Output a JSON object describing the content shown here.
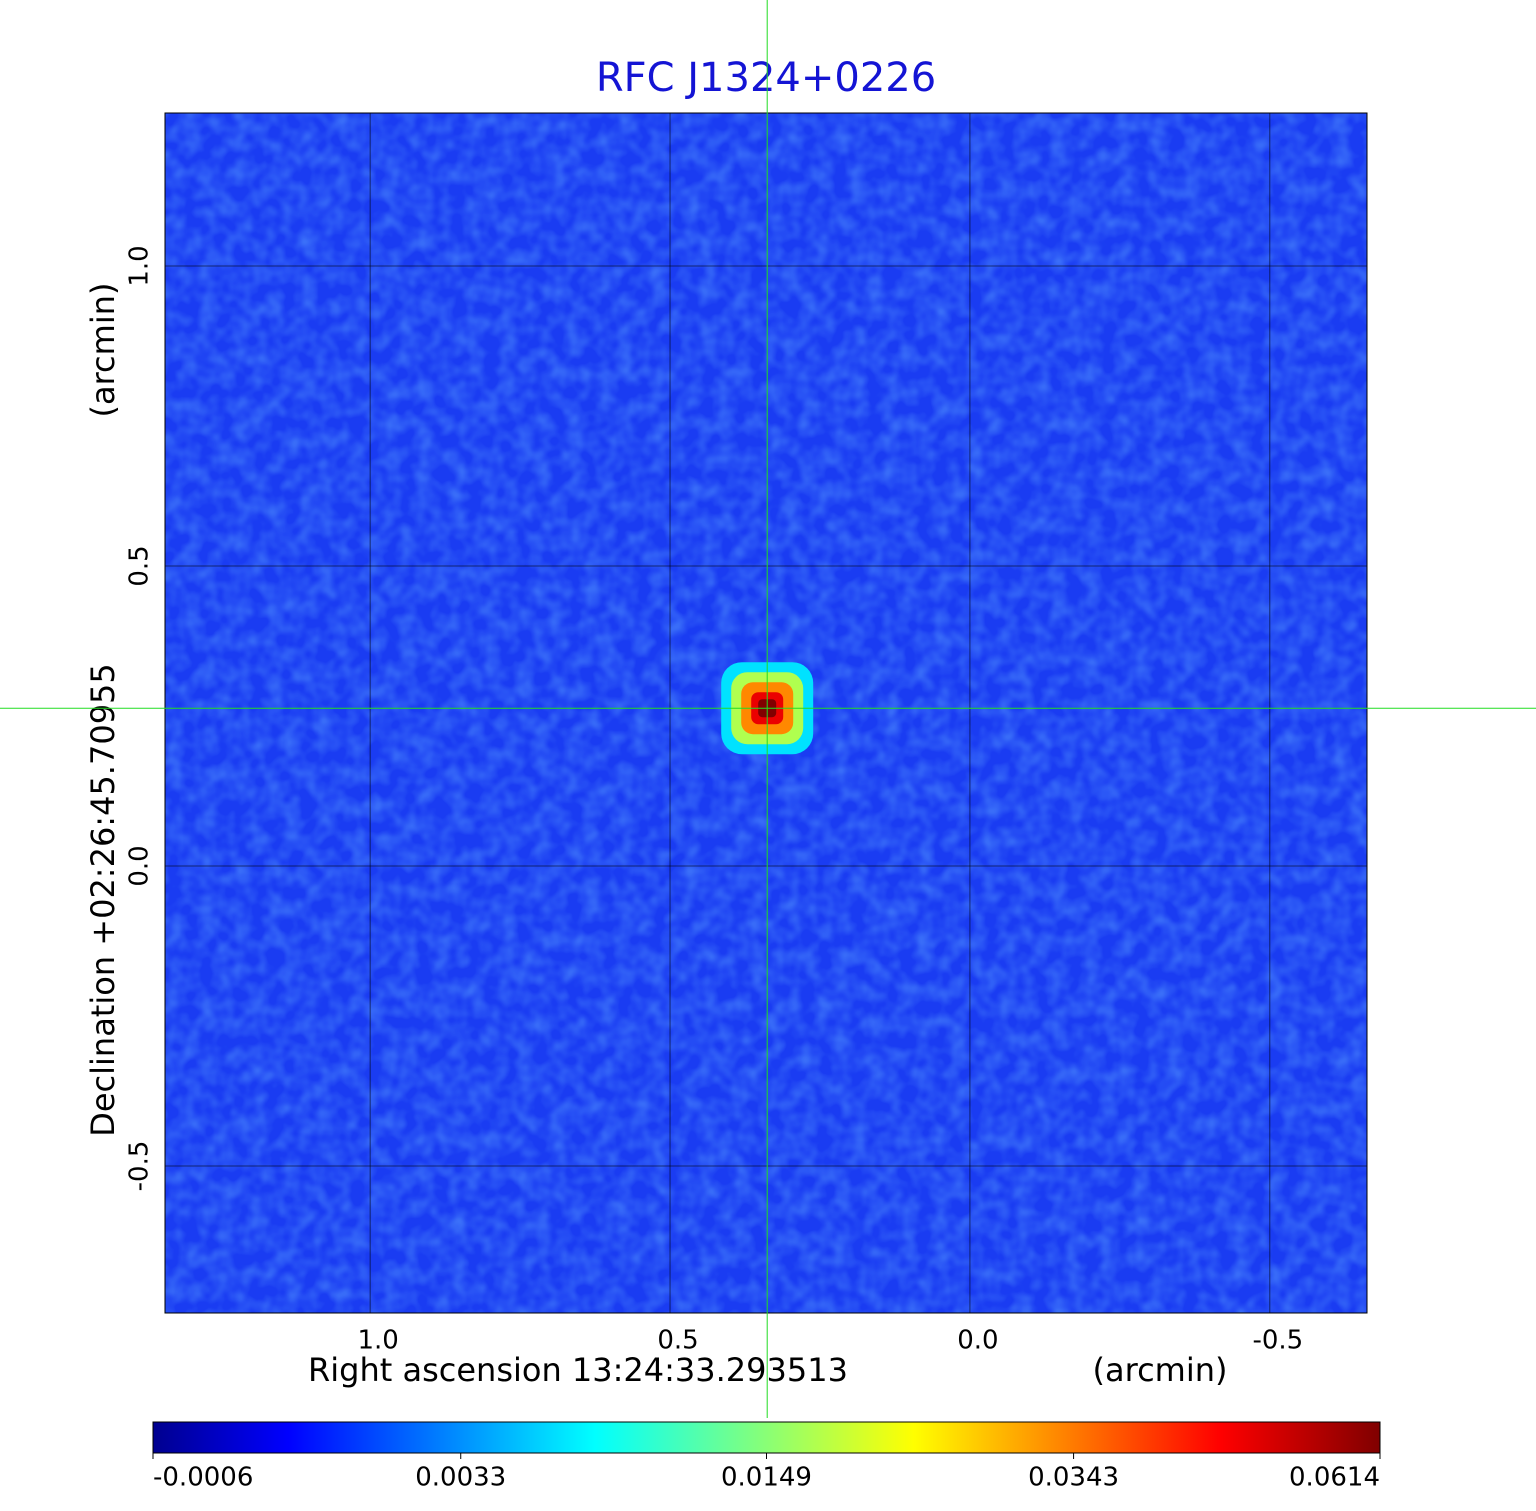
{
  "chart_data": {
    "type": "image",
    "title": "RFC J1324+0226",
    "x_label": "Right ascension  13:24:33.293513",
    "x_unit": "(arcmin)",
    "y_label": "Declination  +02:26:45.70955",
    "y_unit": "(arcmin)",
    "xlim": [
      1.342,
      -0.662
    ],
    "ylim": [
      -0.745,
      1.255
    ],
    "xticks": [
      {
        "value": 1,
        "label": "1.0"
      },
      {
        "value": 0.5,
        "label": "0.5"
      },
      {
        "value": 0,
        "label": "0.0"
      },
      {
        "value": -0.5,
        "label": "-0.5"
      }
    ],
    "yticks": [
      {
        "value": 1,
        "label": "1.0"
      },
      {
        "value": 0.5,
        "label": "0.5"
      },
      {
        "value": 0,
        "label": "0.0"
      },
      {
        "value": -0.5,
        "label": "-0.5"
      }
    ],
    "grid": true,
    "source": {
      "x": 0.338,
      "y": 0.263,
      "peak": 0.0614
    },
    "colorbar": {
      "colormap": "jet",
      "scale": "sqrt",
      "clim": [
        -0.0006,
        0.0614
      ],
      "ticks": [
        -0.0006,
        0.0033,
        0.0149,
        0.0343,
        0.0614
      ]
    }
  }
}
